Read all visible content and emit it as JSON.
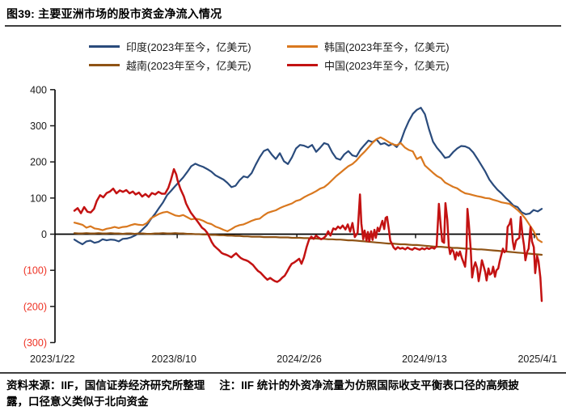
{
  "title": "图39: 主要亚洲市场的股市资金净流入情况",
  "footer": {
    "source": "资料来源：IIF，国信证券经济研究所整理",
    "note": "注：IIF 统计的外资净流量为仿照国际收支平衡表口径的高频披露，口径意义类似于北向资金"
  },
  "chart_data": {
    "type": "line",
    "title": "主要亚洲市场的股市资金净流入情况",
    "unit": "亿美元",
    "x_range": [
      "2023/1/22",
      "2025/4/1"
    ],
    "ylim": [
      -300,
      400
    ],
    "grid": false,
    "legend_position": "top",
    "y_ticks": [
      {
        "v": 400,
        "label": "400",
        "color": "#1a1a1a"
      },
      {
        "v": 300,
        "label": "300",
        "color": "#1a1a1a"
      },
      {
        "v": 200,
        "label": "200",
        "color": "#1a1a1a"
      },
      {
        "v": 100,
        "label": "100",
        "color": "#1a1a1a"
      },
      {
        "v": 0,
        "label": "0",
        "color": "#1a1a1a"
      },
      {
        "v": -100,
        "label": "(100)",
        "color": "#ee3224"
      },
      {
        "v": -200,
        "label": "(200)",
        "color": "#ee3224"
      },
      {
        "v": -300,
        "label": "(300)",
        "color": "#ee3224"
      }
    ],
    "x_ticks": [
      {
        "label": "2023/1/22",
        "t": -0.047
      },
      {
        "label": "2023/8/10",
        "t": 0.213
      },
      {
        "label": "2024/2/26",
        "t": 0.481
      },
      {
        "label": "2024/9/13",
        "t": 0.749
      },
      {
        "label": "2025/4/1",
        "t": 0.991
      }
    ],
    "x_tick_marks": [
      0.22,
      0.476,
      0.73,
      0.984
    ],
    "series": [
      {
        "id": "india",
        "name": "印度(2023年至今，亿美元)",
        "color": "#2a4b7c",
        "values": [
          -15,
          -22,
          -28,
          -20,
          -18,
          -24,
          -21,
          -14,
          -17,
          -15,
          -16,
          -20,
          -13,
          -12,
          -9,
          -4,
          3,
          14,
          25,
          42,
          56,
          72,
          88,
          108,
          120,
          133,
          145,
          157,
          172,
          188,
          195,
          190,
          186,
          180,
          173,
          163,
          157,
          151,
          142,
          130,
          134,
          149,
          160,
          157,
          169,
          192,
          213,
          230,
          235,
          220,
          208,
          224,
          202,
          194,
          213,
          237,
          247,
          245,
          240,
          247,
          228,
          239,
          252,
          248,
          226,
          210,
          206,
          221,
          230,
          218,
          215,
          234,
          247,
          259,
          255,
          262,
          249,
          252,
          245,
          250,
          241,
          257,
          288,
          313,
          333,
          344,
          350,
          332,
          291,
          256,
          239,
          226,
          211,
          214,
          227,
          237,
          244,
          243,
          238,
          226,
          209,
          191,
          173,
          151,
          136,
          123,
          113,
          101,
          91,
          79,
          75,
          61,
          55,
          57,
          67,
          63,
          70
        ]
      },
      {
        "id": "korea",
        "name": "韩国(2023年至今，亿美元)",
        "color": "#d9781f",
        "values": [
          32,
          29,
          26,
          18,
          22,
          16,
          14,
          11,
          15,
          17,
          20,
          17,
          20,
          21,
          25,
          28,
          26,
          25,
          31,
          44,
          50,
          56,
          60,
          62,
          57,
          52,
          50,
          53,
          47,
          41,
          43,
          41,
          37,
          31,
          28,
          21,
          17,
          12,
          8,
          14,
          21,
          25,
          27,
          32,
          37,
          41,
          43,
          52,
          59,
          63,
          66,
          72,
          77,
          81,
          85,
          92,
          95,
          102,
          108,
          113,
          119,
          126,
          130,
          139,
          150,
          161,
          170,
          179,
          188,
          194,
          204,
          217,
          228,
          240,
          253,
          263,
          268,
          262,
          255,
          249,
          246,
          252,
          240,
          233,
          229,
          208,
          214,
          190,
          180,
          170,
          161,
          155,
          143,
          137,
          131,
          127,
          119,
          113,
          111,
          108,
          105,
          103,
          100,
          99,
          95,
          92,
          88,
          86,
          84,
          76,
          67,
          56,
          42,
          25,
          8,
          -15,
          -22
        ]
      },
      {
        "id": "vietnam",
        "name": "越南(2023年至今，亿美元)",
        "color": "#8f5315",
        "values": [
          3,
          2,
          2,
          3,
          2,
          2,
          3,
          2,
          2,
          3,
          2,
          2,
          1,
          2,
          2,
          1,
          2,
          2,
          1,
          1,
          2,
          2,
          3,
          2,
          2,
          3,
          2,
          2,
          1,
          1,
          0,
          0,
          -1,
          -1,
          -2,
          -2,
          -3,
          -3,
          -4,
          -4,
          -5,
          -5,
          -6,
          -6,
          -7,
          -7,
          -7,
          -8,
          -8,
          -8,
          -8,
          -9,
          -9,
          -9,
          -10,
          -10,
          -10,
          -11,
          -11,
          -12,
          -12,
          -13,
          -13,
          -14,
          -14,
          -15,
          -15,
          -16,
          -17,
          -17,
          -18,
          -19,
          -20,
          -21,
          -22,
          -23,
          -24,
          -25,
          -26,
          -26,
          -27,
          -28,
          -28,
          -29,
          -30,
          -30,
          -31,
          -32,
          -33,
          -34,
          -35,
          -35,
          -36,
          -37,
          -38,
          -38,
          -39,
          -40,
          -40,
          -41,
          -42,
          -42,
          -43,
          -44,
          -45,
          -46,
          -47,
          -48,
          -49,
          -50,
          -51,
          -52,
          -53,
          -54,
          -55,
          -56,
          -57
        ]
      },
      {
        "id": "china",
        "name": "中国(2023年至今，亿美元)",
        "color": "#c31212",
        "points": [
          [
            0.0,
            65
          ],
          [
            0.007,
            72
          ],
          [
            0.014,
            58
          ],
          [
            0.021,
            75
          ],
          [
            0.028,
            62
          ],
          [
            0.035,
            60
          ],
          [
            0.042,
            70
          ],
          [
            0.048,
            92
          ],
          [
            0.055,
            108
          ],
          [
            0.062,
            102
          ],
          [
            0.069,
            114
          ],
          [
            0.076,
            118
          ],
          [
            0.083,
            126
          ],
          [
            0.09,
            113
          ],
          [
            0.097,
            121
          ],
          [
            0.104,
            117
          ],
          [
            0.111,
            122
          ],
          [
            0.118,
            113
          ],
          [
            0.125,
            118
          ],
          [
            0.131,
            110
          ],
          [
            0.138,
            115
          ],
          [
            0.145,
            104
          ],
          [
            0.152,
            111
          ],
          [
            0.159,
            103
          ],
          [
            0.166,
            114
          ],
          [
            0.173,
            110
          ],
          [
            0.18,
            117
          ],
          [
            0.187,
            112
          ],
          [
            0.194,
            112
          ],
          [
            0.201,
            128
          ],
          [
            0.206,
            148
          ],
          [
            0.213,
            180
          ],
          [
            0.218,
            165
          ],
          [
            0.221,
            148
          ],
          [
            0.227,
            125
          ],
          [
            0.234,
            105
          ],
          [
            0.239,
            85
          ],
          [
            0.244,
            72
          ],
          [
            0.249,
            60
          ],
          [
            0.256,
            48
          ],
          [
            0.263,
            36
          ],
          [
            0.268,
            27
          ],
          [
            0.273,
            18
          ],
          [
            0.279,
            12
          ],
          [
            0.284,
            4
          ],
          [
            0.289,
            -8
          ],
          [
            0.294,
            -22
          ],
          [
            0.299,
            -32
          ],
          [
            0.304,
            -38
          ],
          [
            0.31,
            -45
          ],
          [
            0.315,
            -52
          ],
          [
            0.32,
            -55
          ],
          [
            0.325,
            -57
          ],
          [
            0.33,
            -60
          ],
          [
            0.336,
            -64
          ],
          [
            0.341,
            -58
          ],
          [
            0.346,
            -53
          ],
          [
            0.351,
            -60
          ],
          [
            0.356,
            -66
          ],
          [
            0.362,
            -70
          ],
          [
            0.367,
            -72
          ],
          [
            0.372,
            -75
          ],
          [
            0.377,
            -80
          ],
          [
            0.382,
            -85
          ],
          [
            0.388,
            -95
          ],
          [
            0.393,
            -102
          ],
          [
            0.398,
            -106
          ],
          [
            0.403,
            -113
          ],
          [
            0.408,
            -120
          ],
          [
            0.413,
            -126
          ],
          [
            0.419,
            -121
          ],
          [
            0.424,
            -126
          ],
          [
            0.429,
            -130
          ],
          [
            0.434,
            -132
          ],
          [
            0.439,
            -128
          ],
          [
            0.445,
            -120
          ],
          [
            0.45,
            -115
          ],
          [
            0.455,
            -104
          ],
          [
            0.46,
            -92
          ],
          [
            0.465,
            -82
          ],
          [
            0.471,
            -78
          ],
          [
            0.476,
            -73
          ],
          [
            0.481,
            -68
          ],
          [
            0.486,
            -82
          ],
          [
            0.491,
            -65
          ],
          [
            0.497,
            -35
          ],
          [
            0.502,
            -15
          ],
          [
            0.507,
            -7
          ],
          [
            0.512,
            -13
          ],
          [
            0.517,
            -4
          ],
          [
            0.522,
            -9
          ],
          [
            0.528,
            -14
          ],
          [
            0.533,
            -11
          ],
          [
            0.538,
            -5
          ],
          [
            0.543,
            8
          ],
          [
            0.548,
            -4
          ],
          [
            0.554,
            16
          ],
          [
            0.559,
            13
          ],
          [
            0.564,
            21
          ],
          [
            0.569,
            16
          ],
          [
            0.574,
            24
          ],
          [
            0.58,
            13
          ],
          [
            0.585,
            27
          ],
          [
            0.59,
            7
          ],
          [
            0.595,
            31
          ],
          [
            0.6,
            -8
          ],
          [
            0.606,
            4
          ],
          [
            0.611,
            110
          ],
          [
            0.614,
            30
          ],
          [
            0.618,
            -14
          ],
          [
            0.621,
            10
          ],
          [
            0.625,
            -18
          ],
          [
            0.628,
            6
          ],
          [
            0.631,
            -20
          ],
          [
            0.635,
            8
          ],
          [
            0.638,
            -16
          ],
          [
            0.642,
            12
          ],
          [
            0.645,
            -10
          ],
          [
            0.649,
            18
          ],
          [
            0.652,
            8
          ],
          [
            0.656,
            25
          ],
          [
            0.659,
            37
          ],
          [
            0.663,
            14
          ],
          [
            0.666,
            45
          ],
          [
            0.669,
            48
          ],
          [
            0.673,
            12
          ],
          [
            0.676,
            -18
          ],
          [
            0.68,
            -28
          ],
          [
            0.683,
            -37
          ],
          [
            0.687,
            -42
          ],
          [
            0.692,
            -36
          ],
          [
            0.697,
            -40
          ],
          [
            0.702,
            -38
          ],
          [
            0.708,
            -42
          ],
          [
            0.713,
            -37
          ],
          [
            0.718,
            -41
          ],
          [
            0.723,
            -43
          ],
          [
            0.728,
            -38
          ],
          [
            0.734,
            -41
          ],
          [
            0.739,
            -43
          ],
          [
            0.744,
            -39
          ],
          [
            0.749,
            -42
          ],
          [
            0.754,
            -38
          ],
          [
            0.759,
            -41
          ],
          [
            0.765,
            -37
          ],
          [
            0.77,
            -40
          ],
          [
            0.775,
            -33
          ],
          [
            0.78,
            84
          ],
          [
            0.784,
            20
          ],
          [
            0.787,
            -20
          ],
          [
            0.791,
            -24
          ],
          [
            0.794,
            86
          ],
          [
            0.798,
            40
          ],
          [
            0.801,
            -32
          ],
          [
            0.804,
            -55
          ],
          [
            0.808,
            -42
          ],
          [
            0.811,
            -48
          ],
          [
            0.815,
            -70
          ],
          [
            0.818,
            -50
          ],
          [
            0.822,
            -60
          ],
          [
            0.825,
            -48
          ],
          [
            0.829,
            -66
          ],
          [
            0.832,
            -76
          ],
          [
            0.836,
            -90
          ],
          [
            0.839,
            -45
          ],
          [
            0.841,
            70
          ],
          [
            0.844,
            30
          ],
          [
            0.848,
            -40
          ],
          [
            0.851,
            -120
          ],
          [
            0.855,
            -90
          ],
          [
            0.858,
            -78
          ],
          [
            0.862,
            -95
          ],
          [
            0.865,
            -130
          ],
          [
            0.869,
            -100
          ],
          [
            0.872,
            -72
          ],
          [
            0.875,
            -86
          ],
          [
            0.879,
            -105
          ],
          [
            0.882,
            -128
          ],
          [
            0.886,
            -95
          ],
          [
            0.889,
            -112
          ],
          [
            0.893,
            -108
          ],
          [
            0.896,
            -90
          ],
          [
            0.9,
            -118
          ],
          [
            0.903,
            -100
          ],
          [
            0.907,
            -95
          ],
          [
            0.91,
            -75
          ],
          [
            0.913,
            -60
          ],
          [
            0.917,
            -40
          ],
          [
            0.92,
            -50
          ],
          [
            0.924,
            -45
          ],
          [
            0.927,
            20
          ],
          [
            0.931,
            28
          ],
          [
            0.934,
            42
          ],
          [
            0.938,
            -20
          ],
          [
            0.941,
            -42
          ],
          [
            0.945,
            -18
          ],
          [
            0.948,
            -14
          ],
          [
            0.952,
            -10
          ],
          [
            0.955,
            48
          ],
          [
            0.959,
            -5
          ],
          [
            0.962,
            -30
          ],
          [
            0.965,
            -72
          ],
          [
            0.969,
            -48
          ],
          [
            0.972,
            -40
          ],
          [
            0.976,
            20
          ],
          [
            0.979,
            -20
          ],
          [
            0.983,
            -36
          ],
          [
            0.986,
            -108
          ],
          [
            0.99,
            -60
          ],
          [
            0.993,
            -75
          ],
          [
            0.997,
            -120
          ],
          [
            1.0,
            -185
          ]
        ]
      }
    ]
  }
}
